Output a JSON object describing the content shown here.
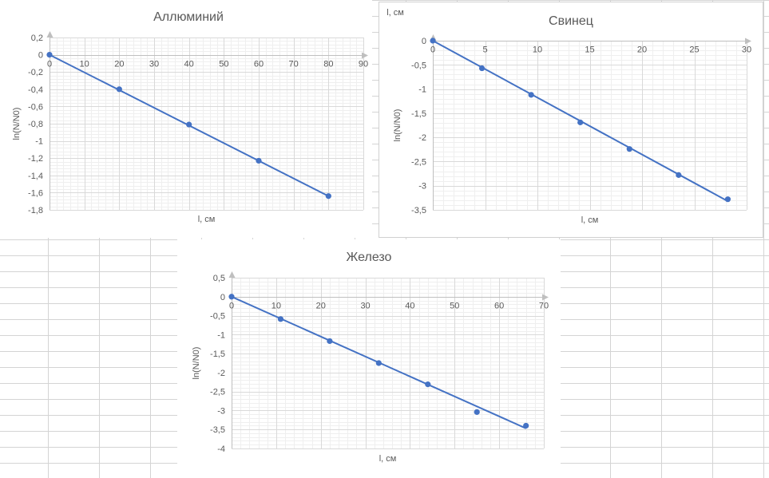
{
  "chart_data": [
    {
      "type": "scatter",
      "title": "Аллюминий",
      "xlabel": "l, см",
      "ylabel": "ln(N/N0)",
      "xlabel_top": "",
      "xlim": [
        0,
        90
      ],
      "ylim": [
        -1.8,
        0.2
      ],
      "x_ticks": [
        0,
        10,
        20,
        30,
        40,
        50,
        60,
        70,
        80,
        90
      ],
      "y_ticks": [
        0.2,
        0,
        -0.2,
        -0.4,
        -0.6,
        -0.8,
        -1,
        -1.2,
        -1.4,
        -1.6,
        -1.8
      ],
      "x_tick_labels": [
        "0",
        "10",
        "20",
        "30",
        "40",
        "50",
        "60",
        "70",
        "80",
        "90"
      ],
      "y_tick_labels": [
        "0,2",
        "0",
        "-0,2",
        "-0,4",
        "-0,6",
        "-0,8",
        "-1",
        "-1,2",
        "-1,4",
        "-1,6",
        "-1,8"
      ],
      "points": [
        {
          "x": 0,
          "y": 0
        },
        {
          "x": 20,
          "y": -0.4
        },
        {
          "x": 40,
          "y": -0.81
        },
        {
          "x": 60,
          "y": -1.23
        },
        {
          "x": 80,
          "y": -1.64
        }
      ],
      "trendline": {
        "x": [
          0,
          80
        ],
        "y": [
          0,
          -1.64
        ]
      },
      "grid": true,
      "color": "#4472c4"
    },
    {
      "type": "scatter",
      "title": "Свинец",
      "xlabel": "l, см",
      "ylabel": "ln(N/N0)",
      "xlabel_top": "l, см",
      "xlim": [
        0,
        30
      ],
      "ylim": [
        -3.5,
        0
      ],
      "x_ticks": [
        0,
        5,
        10,
        15,
        20,
        25,
        30
      ],
      "y_ticks": [
        0,
        -0.5,
        -1,
        -1.5,
        -2,
        -2.5,
        -3,
        -3.5
      ],
      "x_tick_labels": [
        "0",
        "5",
        "10",
        "15",
        "20",
        "25",
        "30"
      ],
      "y_tick_labels": [
        "0",
        "-0,5",
        "-1",
        "-1,5",
        "-2",
        "-2,5",
        "-3",
        "-3,5"
      ],
      "points": [
        {
          "x": 0,
          "y": 0
        },
        {
          "x": 4.7,
          "y": -0.57
        },
        {
          "x": 9.4,
          "y": -1.12
        },
        {
          "x": 14.1,
          "y": -1.69
        },
        {
          "x": 18.8,
          "y": -2.24
        },
        {
          "x": 23.5,
          "y": -2.78
        },
        {
          "x": 28.2,
          "y": -3.28
        }
      ],
      "trendline": {
        "x": [
          0,
          28.2
        ],
        "y": [
          0,
          -3.32
        ]
      },
      "grid": true,
      "color": "#4472c4"
    },
    {
      "type": "scatter",
      "title": "Железо",
      "xlabel": "l, см",
      "ylabel": "ln(N/N0)",
      "xlabel_top": "",
      "xlim": [
        0,
        70
      ],
      "ylim": [
        -4,
        0.5
      ],
      "x_ticks": [
        0,
        10,
        20,
        30,
        40,
        50,
        60,
        70
      ],
      "y_ticks": [
        0.5,
        0,
        -0.5,
        -1,
        -1.5,
        -2,
        -2.5,
        -3,
        -3.5,
        -4
      ],
      "x_tick_labels": [
        "0",
        "10",
        "20",
        "30",
        "40",
        "50",
        "60",
        "70"
      ],
      "y_tick_labels": [
        "0,5",
        "0",
        "-0,5",
        "-1",
        "-1,5",
        "-2",
        "-2,5",
        "-3",
        "-3,5",
        "-4"
      ],
      "points": [
        {
          "x": 0,
          "y": 0
        },
        {
          "x": 11,
          "y": -0.59
        },
        {
          "x": 22,
          "y": -1.17
        },
        {
          "x": 33,
          "y": -1.75
        },
        {
          "x": 44,
          "y": -2.31
        },
        {
          "x": 55,
          "y": -3.04
        },
        {
          "x": 66,
          "y": -3.4
        }
      ],
      "trendline": {
        "x": [
          0,
          66
        ],
        "y": [
          0,
          -3.47
        ]
      },
      "grid": true,
      "color": "#4472c4"
    }
  ]
}
